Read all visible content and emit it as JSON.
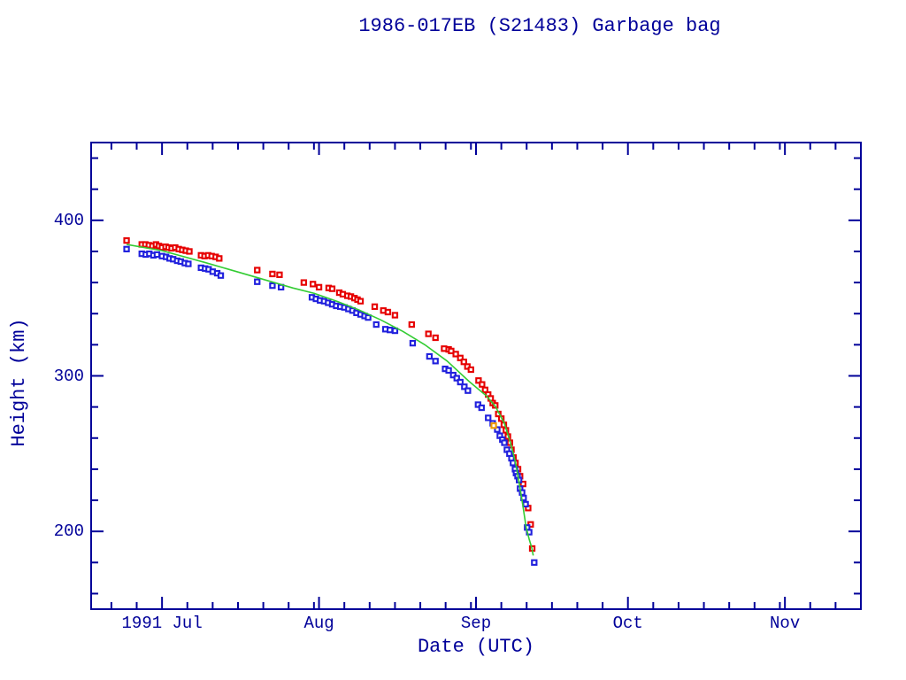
{
  "chart_data": {
    "type": "scatter",
    "title": "1986-017EB (S21483) Garbage bag",
    "xlabel": "Date (UTC)",
    "ylabel": "Height (km)",
    "x_unit": "days since 1991-06-17 (UTC)",
    "xlim": [
      0,
      152
    ],
    "ylim": [
      150,
      450
    ],
    "grid": false,
    "legend": "none",
    "x_major_ticks": [
      {
        "day": 14,
        "label": "1991 Jul"
      },
      {
        "day": 45,
        "label": "Aug"
      },
      {
        "day": 76,
        "label": "Sep"
      },
      {
        "day": 106,
        "label": "Oct"
      },
      {
        "day": 137,
        "label": "Nov"
      }
    ],
    "x_minor_tick_days": [
      4,
      9,
      19,
      24,
      29,
      34,
      39,
      44,
      50,
      55,
      60,
      65,
      70,
      75,
      81,
      86,
      91,
      96,
      101,
      111,
      116,
      121,
      126,
      131,
      136,
      142,
      147
    ],
    "y_major_ticks": [
      {
        "value": 200,
        "label": "200"
      },
      {
        "value": 300,
        "label": "300"
      },
      {
        "value": 400,
        "label": "400"
      }
    ],
    "y_minor_tick_values": [
      160,
      180,
      220,
      240,
      260,
      280,
      320,
      340,
      360,
      380,
      420,
      440
    ],
    "colors": {
      "axis": "#000099",
      "text": "#000099",
      "apogee": "#e60000",
      "perigee": "#2020dd",
      "other": "#ee9900",
      "fit_line": "#33cc33",
      "background": "#ffffff"
    },
    "series": [
      {
        "name": "apogee-height",
        "kind": "points",
        "color_key": "apogee",
        "points": [
          [
            7.0,
            387
          ],
          [
            10.0,
            384.5
          ],
          [
            10.7,
            384.5
          ],
          [
            11.4,
            384
          ],
          [
            12.1,
            383.5
          ],
          [
            12.8,
            384.5
          ],
          [
            13.4,
            383.5
          ],
          [
            14.0,
            382.5
          ],
          [
            14.7,
            383
          ],
          [
            15.3,
            382.5
          ],
          [
            15.9,
            382
          ],
          [
            16.6,
            382.5
          ],
          [
            17.3,
            381.5
          ],
          [
            18.0,
            381
          ],
          [
            18.7,
            380.5
          ],
          [
            19.4,
            380
          ],
          [
            21.7,
            377.5
          ],
          [
            22.4,
            377
          ],
          [
            23.1,
            377.5
          ],
          [
            23.8,
            377
          ],
          [
            24.6,
            376.5
          ],
          [
            25.3,
            375.5
          ],
          [
            32.8,
            368
          ],
          [
            35.8,
            365.5
          ],
          [
            37.2,
            365
          ],
          [
            42.0,
            360
          ],
          [
            43.8,
            359
          ],
          [
            45.0,
            357
          ],
          [
            46.9,
            356.5
          ],
          [
            47.6,
            356
          ],
          [
            49.0,
            353.5
          ],
          [
            49.7,
            352.5
          ],
          [
            50.6,
            351.5
          ],
          [
            51.3,
            351
          ],
          [
            52.0,
            350
          ],
          [
            52.6,
            349
          ],
          [
            53.2,
            348
          ],
          [
            56.0,
            344.5
          ],
          [
            57.7,
            342
          ],
          [
            58.6,
            341
          ],
          [
            60.0,
            339
          ],
          [
            63.3,
            333
          ],
          [
            66.6,
            327
          ],
          [
            68.0,
            324.5
          ],
          [
            69.7,
            317.5
          ],
          [
            70.6,
            317
          ],
          [
            71.1,
            316
          ],
          [
            72.0,
            314
          ],
          [
            72.9,
            311.5
          ],
          [
            73.6,
            309
          ],
          [
            74.3,
            306
          ],
          [
            75.0,
            304
          ],
          [
            76.5,
            297
          ],
          [
            77.2,
            294.5
          ],
          [
            77.8,
            291
          ],
          [
            78.4,
            288
          ],
          [
            78.9,
            285.5
          ],
          [
            79.3,
            282.5
          ],
          [
            79.8,
            281
          ],
          [
            80.4,
            275.5
          ],
          [
            81.0,
            272.5
          ],
          [
            81.5,
            268.5
          ],
          [
            81.9,
            265
          ],
          [
            82.3,
            261
          ],
          [
            82.7,
            257
          ],
          [
            83.0,
            252.5
          ],
          [
            83.4,
            247.5
          ],
          [
            83.8,
            244
          ],
          [
            84.3,
            240
          ],
          [
            84.7,
            235.5
          ],
          [
            85.3,
            230.5
          ],
          [
            86.3,
            215
          ],
          [
            86.8,
            204.5
          ],
          [
            87.1,
            189
          ]
        ]
      },
      {
        "name": "perigee-height",
        "kind": "points",
        "color_key": "perigee",
        "points": [
          [
            7.0,
            381.5
          ],
          [
            10.0,
            378.5
          ],
          [
            10.8,
            378
          ],
          [
            11.5,
            378.5
          ],
          [
            12.3,
            377.5
          ],
          [
            13.0,
            378
          ],
          [
            14.0,
            377
          ],
          [
            14.8,
            376.5
          ],
          [
            15.5,
            375.5
          ],
          [
            16.2,
            375
          ],
          [
            17.0,
            374
          ],
          [
            17.7,
            373.5
          ],
          [
            18.5,
            372.5
          ],
          [
            19.2,
            372
          ],
          [
            21.7,
            369.5
          ],
          [
            22.5,
            369
          ],
          [
            23.2,
            368.5
          ],
          [
            24.0,
            367
          ],
          [
            24.9,
            366
          ],
          [
            25.6,
            364.5
          ],
          [
            32.8,
            360.5
          ],
          [
            35.8,
            358
          ],
          [
            37.5,
            357
          ],
          [
            43.6,
            350.5
          ],
          [
            44.4,
            349.5
          ],
          [
            45.2,
            348.5
          ],
          [
            46.0,
            348
          ],
          [
            46.8,
            347
          ],
          [
            47.6,
            346
          ],
          [
            48.4,
            345
          ],
          [
            49.2,
            344.5
          ],
          [
            50.0,
            344
          ],
          [
            50.8,
            343
          ],
          [
            51.6,
            342
          ],
          [
            52.4,
            340.5
          ],
          [
            53.2,
            339.5
          ],
          [
            54.0,
            338.5
          ],
          [
            54.7,
            337.5
          ],
          [
            56.3,
            333
          ],
          [
            58.1,
            330
          ],
          [
            59.0,
            329.5
          ],
          [
            60.0,
            329
          ],
          [
            63.5,
            321
          ],
          [
            66.8,
            312.5
          ],
          [
            68.0,
            309.5
          ],
          [
            69.9,
            304.5
          ],
          [
            70.6,
            303.5
          ],
          [
            71.5,
            300.5
          ],
          [
            72.2,
            298.5
          ],
          [
            72.9,
            296
          ],
          [
            73.7,
            293
          ],
          [
            74.4,
            290.5
          ],
          [
            76.4,
            281.5
          ],
          [
            77.1,
            279.5
          ],
          [
            78.4,
            273
          ],
          [
            79.3,
            269.5
          ],
          [
            80.2,
            265.5
          ],
          [
            80.7,
            261.5
          ],
          [
            81.2,
            259
          ],
          [
            81.6,
            257
          ],
          [
            82.1,
            252.5
          ],
          [
            82.6,
            250
          ],
          [
            83.0,
            247
          ],
          [
            83.3,
            244
          ],
          [
            83.7,
            240
          ],
          [
            83.9,
            237.5
          ],
          [
            84.2,
            235.5
          ],
          [
            84.5,
            233
          ],
          [
            84.7,
            227.5
          ],
          [
            85.1,
            225
          ],
          [
            85.4,
            221.5
          ],
          [
            85.8,
            217.5
          ],
          [
            86.1,
            202.5
          ],
          [
            86.5,
            199.5
          ],
          [
            87.5,
            180
          ]
        ]
      },
      {
        "name": "other-observation",
        "kind": "points",
        "color_key": "other",
        "points": [
          [
            79.5,
            268
          ]
        ]
      },
      {
        "name": "decay-fit",
        "kind": "line",
        "color_key": "fit_line",
        "points": [
          [
            7.0,
            384.5
          ],
          [
            14.0,
            380.5
          ],
          [
            22.4,
            373
          ],
          [
            31.1,
            364.8
          ],
          [
            39.8,
            356.5
          ],
          [
            44.1,
            353
          ],
          [
            48.5,
            348
          ],
          [
            52.8,
            342.5
          ],
          [
            57.2,
            336
          ],
          [
            61.6,
            328.5
          ],
          [
            65.9,
            320
          ],
          [
            70.3,
            309.5
          ],
          [
            74.6,
            296.5
          ],
          [
            78.1,
            287
          ],
          [
            79.8,
            280.5
          ],
          [
            81.6,
            269.5
          ],
          [
            82.8,
            257
          ],
          [
            83.8,
            244.5
          ],
          [
            84.5,
            231.5
          ],
          [
            85.2,
            217.5
          ],
          [
            85.9,
            202.5
          ],
          [
            86.5,
            195
          ],
          [
            87.0,
            189.5
          ],
          [
            87.3,
            184.5
          ]
        ]
      }
    ]
  }
}
